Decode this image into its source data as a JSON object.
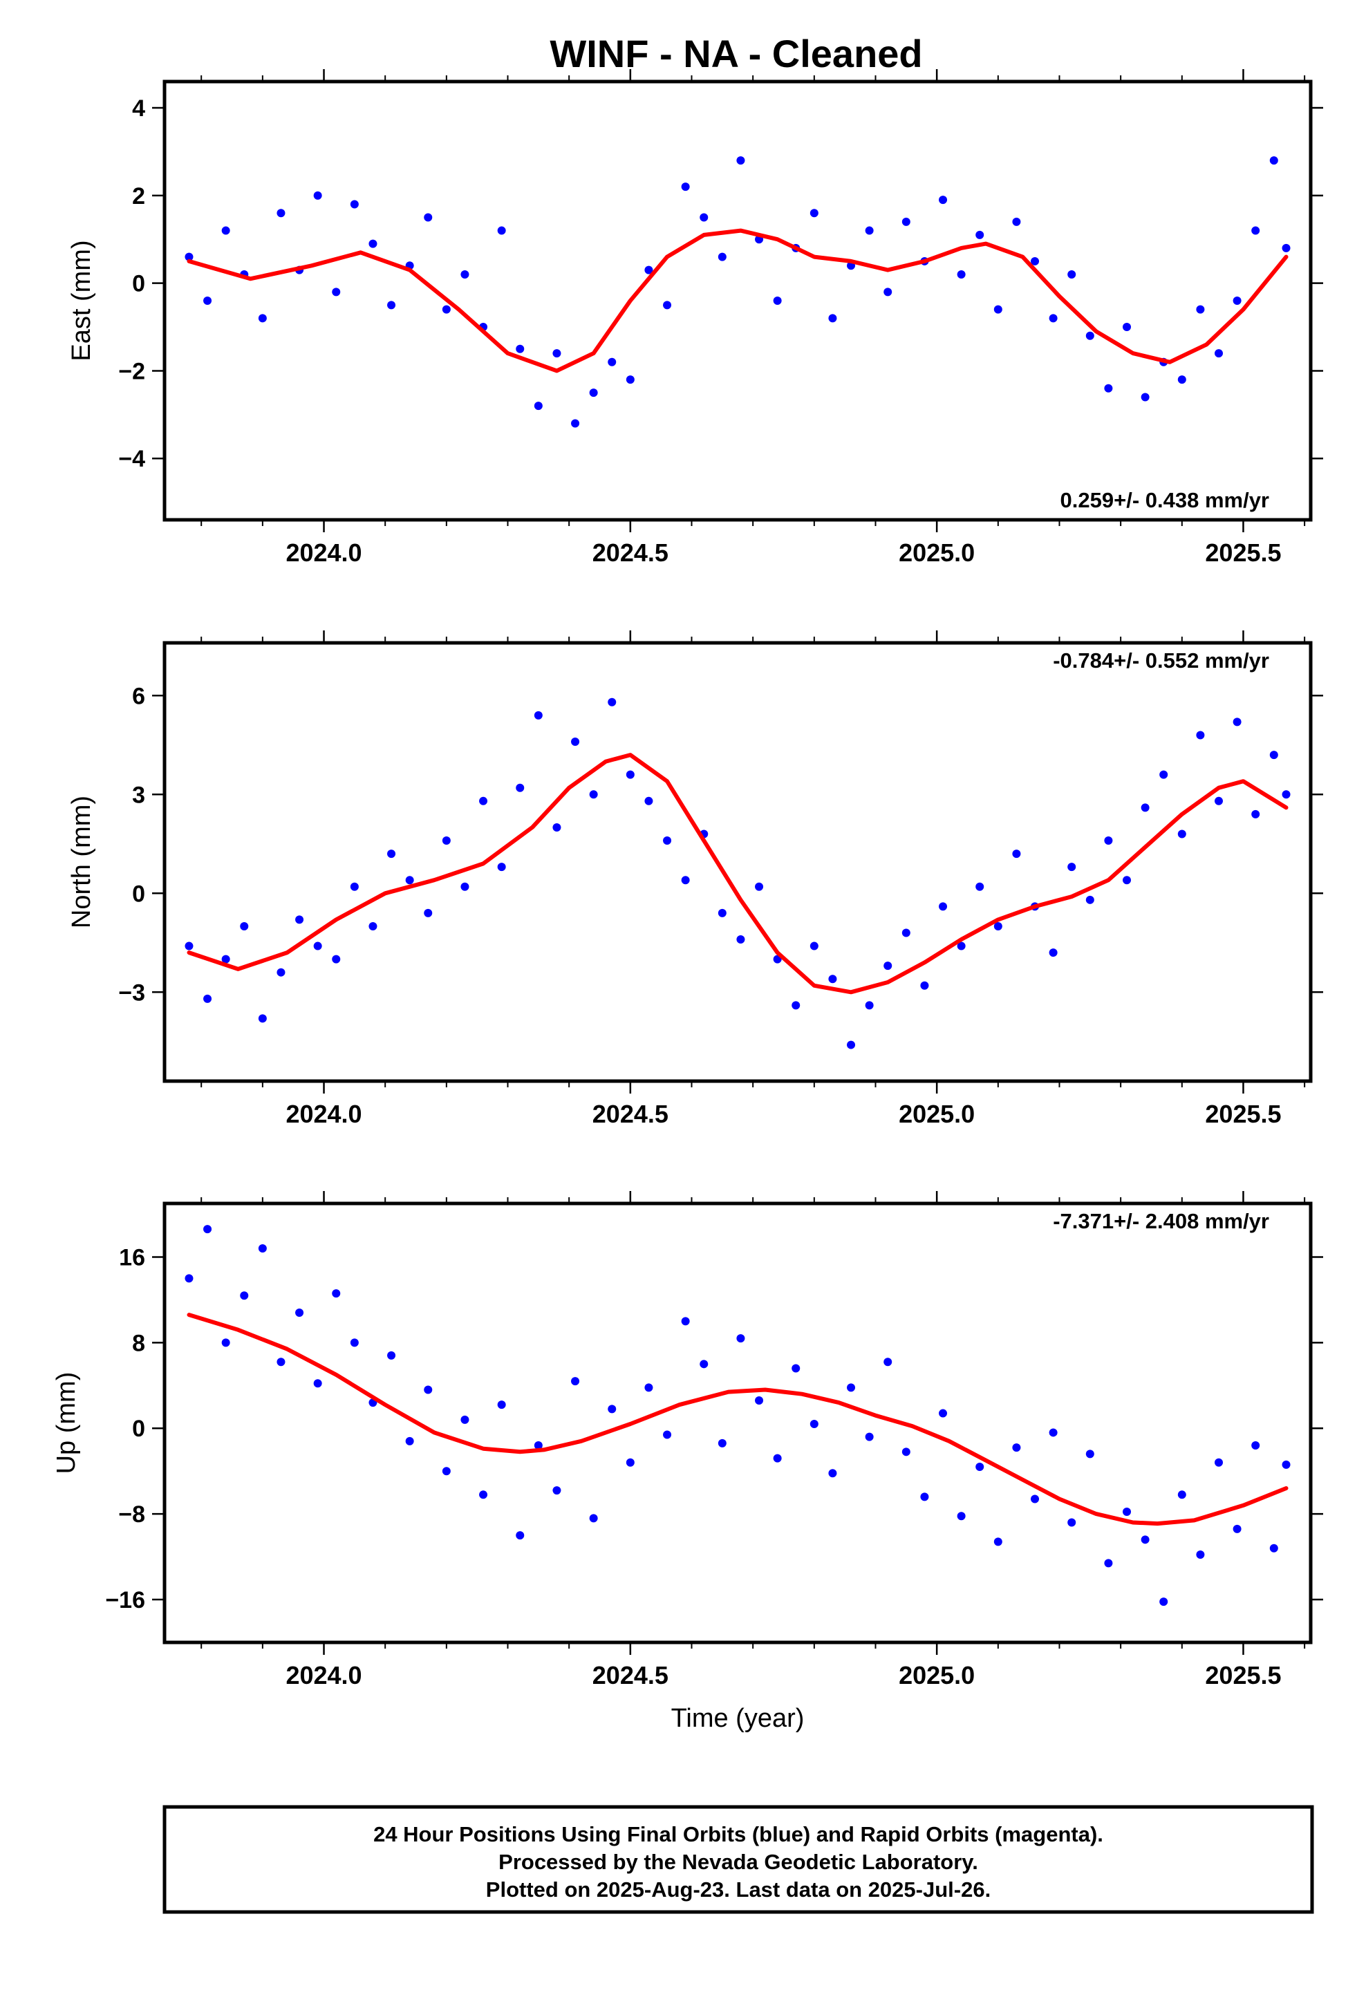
{
  "page": {
    "title": "WINF  - NA - Cleaned"
  },
  "chart_data": [
    {
      "type": "scatter",
      "ylabel": "East (mm)",
      "xlabel": "",
      "xlim": [
        2023.74,
        2025.61
      ],
      "ylim": [
        -5.4,
        4.6
      ],
      "x_ticks": [
        2024.0,
        2024.5,
        2025.0,
        2025.5
      ],
      "x_tick_labels": [
        "2024.0",
        "2024.5",
        "2025.0",
        "2025.5"
      ],
      "y_ticks": [
        -4,
        -2,
        0,
        2,
        4
      ],
      "y_tick_labels": [
        "−4",
        "−2",
        "0",
        "2",
        "4"
      ],
      "rate": "0.259+/- 0.438 mm/yr",
      "series": [
        {
          "kind": "points",
          "color": "#0000ff",
          "x": [
            2023.78,
            2023.81,
            2023.84,
            2023.87,
            2023.9,
            2023.93,
            2023.96,
            2023.99,
            2024.02,
            2024.05,
            2024.08,
            2024.11,
            2024.14,
            2024.17,
            2024.2,
            2024.23,
            2024.26,
            2024.29,
            2024.32,
            2024.35,
            2024.38,
            2024.41,
            2024.44,
            2024.47,
            2024.5,
            2024.53,
            2024.56,
            2024.59,
            2024.62,
            2024.65,
            2024.68,
            2024.71,
            2024.74,
            2024.77,
            2024.8,
            2024.83,
            2024.86,
            2024.89,
            2024.92,
            2024.95,
            2024.98,
            2025.01,
            2025.04,
            2025.07,
            2025.1,
            2025.13,
            2025.16,
            2025.19,
            2025.22,
            2025.25,
            2025.28,
            2025.31,
            2025.34,
            2025.37,
            2025.4,
            2025.43,
            2025.46,
            2025.49,
            2025.52,
            2025.55,
            2025.57
          ],
          "y": [
            0.6,
            -0.4,
            1.2,
            0.2,
            -0.8,
            1.6,
            0.3,
            2.0,
            -0.2,
            1.8,
            0.9,
            -0.5,
            0.4,
            1.5,
            -0.6,
            0.2,
            -1.0,
            1.2,
            -1.5,
            -2.8,
            -1.6,
            -3.2,
            -2.5,
            -1.8,
            -2.2,
            0.3,
            -0.5,
            2.2,
            1.5,
            0.6,
            2.8,
            1.0,
            -0.4,
            0.8,
            1.6,
            -0.8,
            0.4,
            1.2,
            -0.2,
            1.4,
            0.5,
            1.9,
            0.2,
            1.1,
            -0.6,
            1.4,
            0.5,
            -0.8,
            0.2,
            -1.2,
            -2.4,
            -1.0,
            -2.6,
            -1.8,
            -2.2,
            -0.6,
            -1.6,
            -0.4,
            1.2,
            2.8,
            0.8
          ]
        },
        {
          "kind": "fit",
          "color": "#ff0000",
          "x": [
            2023.78,
            2023.88,
            2023.98,
            2024.06,
            2024.14,
            2024.22,
            2024.3,
            2024.38,
            2024.44,
            2024.5,
            2024.56,
            2024.62,
            2024.68,
            2024.74,
            2024.8,
            2024.86,
            2024.92,
            2024.98,
            2025.04,
            2025.08,
            2025.14,
            2025.2,
            2025.26,
            2025.32,
            2025.38,
            2025.44,
            2025.5,
            2025.57
          ],
          "y": [
            0.5,
            0.1,
            0.4,
            0.7,
            0.3,
            -0.6,
            -1.6,
            -2.0,
            -1.6,
            -0.4,
            0.6,
            1.1,
            1.2,
            1.0,
            0.6,
            0.5,
            0.3,
            0.5,
            0.8,
            0.9,
            0.6,
            -0.3,
            -1.1,
            -1.6,
            -1.8,
            -1.4,
            -0.6,
            0.6
          ]
        }
      ]
    },
    {
      "type": "scatter",
      "ylabel": "North (mm)",
      "xlabel": "",
      "xlim": [
        2023.74,
        2025.61
      ],
      "ylim": [
        -5.7,
        7.6
      ],
      "x_ticks": [
        2024.0,
        2024.5,
        2025.0,
        2025.5
      ],
      "x_tick_labels": [
        "2024.0",
        "2024.5",
        "2025.0",
        "2025.5"
      ],
      "y_ticks": [
        -3,
        0,
        3,
        6
      ],
      "y_tick_labels": [
        "−3",
        "0",
        "3",
        "6"
      ],
      "rate": "-0.784+/- 0.552 mm/yr",
      "series": [
        {
          "kind": "points",
          "color": "#0000ff",
          "x": [
            2023.78,
            2023.81,
            2023.84,
            2023.87,
            2023.9,
            2023.93,
            2023.96,
            2023.99,
            2024.02,
            2024.05,
            2024.08,
            2024.11,
            2024.14,
            2024.17,
            2024.2,
            2024.23,
            2024.26,
            2024.29,
            2024.32,
            2024.35,
            2024.38,
            2024.41,
            2024.44,
            2024.47,
            2024.5,
            2024.53,
            2024.56,
            2024.59,
            2024.62,
            2024.65,
            2024.68,
            2024.71,
            2024.74,
            2024.77,
            2024.8,
            2024.83,
            2024.86,
            2024.89,
            2024.92,
            2024.95,
            2024.98,
            2025.01,
            2025.04,
            2025.07,
            2025.1,
            2025.13,
            2025.16,
            2025.19,
            2025.22,
            2025.25,
            2025.28,
            2025.31,
            2025.34,
            2025.37,
            2025.4,
            2025.43,
            2025.46,
            2025.49,
            2025.52,
            2025.55,
            2025.57
          ],
          "y": [
            -1.6,
            -3.2,
            -2.0,
            -1.0,
            -3.8,
            -2.4,
            -0.8,
            -1.6,
            -2.0,
            0.2,
            -1.0,
            1.2,
            0.4,
            -0.6,
            1.6,
            0.2,
            2.8,
            0.8,
            3.2,
            5.4,
            2.0,
            4.6,
            3.0,
            5.8,
            3.6,
            2.8,
            1.6,
            0.4,
            1.8,
            -0.6,
            -1.4,
            0.2,
            -2.0,
            -3.4,
            -1.6,
            -2.6,
            -4.6,
            -3.4,
            -2.2,
            -1.2,
            -2.8,
            -0.4,
            -1.6,
            0.2,
            -1.0,
            1.2,
            -0.4,
            -1.8,
            0.8,
            -0.2,
            1.6,
            0.4,
            2.6,
            3.6,
            1.8,
            4.8,
            2.8,
            5.2,
            2.4,
            4.2,
            3.0
          ]
        },
        {
          "kind": "fit",
          "color": "#ff0000",
          "x": [
            2023.78,
            2023.86,
            2023.94,
            2024.02,
            2024.1,
            2024.18,
            2024.26,
            2024.34,
            2024.4,
            2024.46,
            2024.5,
            2024.56,
            2024.62,
            2024.68,
            2024.74,
            2024.8,
            2024.86,
            2024.92,
            2024.98,
            2025.04,
            2025.1,
            2025.16,
            2025.22,
            2025.28,
            2025.34,
            2025.4,
            2025.46,
            2025.5,
            2025.57
          ],
          "y": [
            -1.8,
            -2.3,
            -1.8,
            -0.8,
            0.0,
            0.4,
            0.9,
            2.0,
            3.2,
            4.0,
            4.2,
            3.4,
            1.6,
            -0.2,
            -1.8,
            -2.8,
            -3.0,
            -2.7,
            -2.1,
            -1.4,
            -0.8,
            -0.4,
            -0.1,
            0.4,
            1.4,
            2.4,
            3.2,
            3.4,
            2.6
          ]
        }
      ]
    },
    {
      "type": "scatter",
      "ylabel": "Up (mm)",
      "xlabel": "Time (year)",
      "xlim": [
        2023.74,
        2025.61
      ],
      "ylim": [
        -20,
        21
      ],
      "x_ticks": [
        2024.0,
        2024.5,
        2025.0,
        2025.5
      ],
      "x_tick_labels": [
        "2024.0",
        "2024.5",
        "2025.0",
        "2025.5"
      ],
      "y_ticks": [
        -16,
        -8,
        0,
        8,
        16
      ],
      "y_tick_labels": [
        "−16",
        "−8",
        "0",
        "8",
        "16"
      ],
      "rate": "-7.371+/- 2.408 mm/yr",
      "series": [
        {
          "kind": "points",
          "color": "#0000ff",
          "x": [
            2023.78,
            2023.81,
            2023.84,
            2023.87,
            2023.9,
            2023.93,
            2023.96,
            2023.99,
            2024.02,
            2024.05,
            2024.08,
            2024.11,
            2024.14,
            2024.17,
            2024.2,
            2024.23,
            2024.26,
            2024.29,
            2024.32,
            2024.35,
            2024.38,
            2024.41,
            2024.44,
            2024.47,
            2024.5,
            2024.53,
            2024.56,
            2024.59,
            2024.62,
            2024.65,
            2024.68,
            2024.71,
            2024.74,
            2024.77,
            2024.8,
            2024.83,
            2024.86,
            2024.89,
            2024.92,
            2024.95,
            2024.98,
            2025.01,
            2025.04,
            2025.07,
            2025.1,
            2025.13,
            2025.16,
            2025.19,
            2025.22,
            2025.25,
            2025.28,
            2025.31,
            2025.34,
            2025.37,
            2025.4,
            2025.43,
            2025.46,
            2025.49,
            2025.52,
            2025.55,
            2025.57
          ],
          "y": [
            14.0,
            18.6,
            8.0,
            12.4,
            16.8,
            6.2,
            10.8,
            4.2,
            12.6,
            8.0,
            2.4,
            6.8,
            -1.2,
            3.6,
            -4.0,
            0.8,
            -6.2,
            2.2,
            -10.0,
            -1.6,
            -5.8,
            4.4,
            -8.4,
            1.8,
            -3.2,
            3.8,
            -0.6,
            10.0,
            6.0,
            -1.4,
            8.4,
            2.6,
            -2.8,
            5.6,
            0.4,
            -4.2,
            3.8,
            -0.8,
            6.2,
            -2.2,
            -6.4,
            1.4,
            -8.2,
            -3.6,
            -10.6,
            -1.8,
            -6.6,
            -0.4,
            -8.8,
            -2.4,
            -12.6,
            -7.8,
            -10.4,
            -16.2,
            -6.2,
            -11.8,
            -3.2,
            -9.4,
            -1.6,
            -11.2,
            -3.4
          ]
        },
        {
          "kind": "fit",
          "color": "#ff0000",
          "x": [
            2023.78,
            2023.86,
            2023.94,
            2024.02,
            2024.1,
            2024.18,
            2024.26,
            2024.32,
            2024.36,
            2024.42,
            2024.5,
            2024.58,
            2024.66,
            2024.72,
            2024.78,
            2024.84,
            2024.9,
            2024.96,
            2025.02,
            2025.08,
            2025.14,
            2025.2,
            2025.26,
            2025.32,
            2025.36,
            2025.42,
            2025.5,
            2025.57
          ],
          "y": [
            10.6,
            9.2,
            7.4,
            5.0,
            2.2,
            -0.4,
            -1.9,
            -2.2,
            -2.0,
            -1.2,
            0.4,
            2.2,
            3.4,
            3.6,
            3.2,
            2.4,
            1.2,
            0.2,
            -1.2,
            -3.0,
            -4.8,
            -6.6,
            -8.0,
            -8.8,
            -8.9,
            -8.6,
            -7.2,
            -5.6
          ]
        }
      ]
    }
  ],
  "footer": {
    "line1": "24 Hour Positions Using Final Orbits (blue) and Rapid Orbits (magenta).",
    "line2": "Processed by the Nevada Geodetic Laboratory.",
    "line3": "Plotted on 2025-Aug-23. Last data on 2025-Jul-26."
  }
}
